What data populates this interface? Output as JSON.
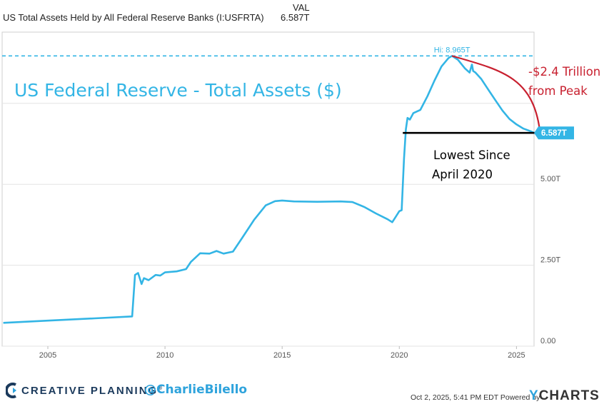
{
  "legend": {
    "series_label": "US Total Assets Held by All Federal Reserve Banks (I:USFRTA)",
    "value_header": "VAL",
    "value": "6.587T"
  },
  "colors": {
    "series": "#33b5e5",
    "annotation_red": "#c8202f",
    "text_dark": "#222222",
    "brand_navy": "#1b3a5c",
    "brand_blue": "#2ea3dc"
  },
  "chart_data": {
    "type": "line",
    "title": "US Federal Reserve - Total Assets ($)",
    "xlabel": "",
    "ylabel": "",
    "x_ticks": [
      "2005",
      "2010",
      "2015",
      "2020",
      "2025"
    ],
    "y_ticks": [
      "0.00",
      "2.50T",
      "5.00T"
    ],
    "x_range": [
      2003.05,
      2025.75
    ],
    "y_range": [
      0,
      9.7
    ],
    "y_unit": "trillion USD",
    "grid": "horizontal",
    "series": [
      {
        "name": "US Total Assets Held by All Federal Reserve Banks (I:USFRTA)",
        "x": [
          2003.1,
          2005.0,
          2007.0,
          2008.6,
          2008.72,
          2008.85,
          2009.0,
          2009.1,
          2009.3,
          2009.6,
          2009.8,
          2010.0,
          2010.5,
          2010.9,
          2011.1,
          2011.5,
          2011.9,
          2012.2,
          2012.5,
          2012.9,
          2013.3,
          2013.8,
          2014.3,
          2014.7,
          2015.0,
          2015.5,
          2016.5,
          2017.5,
          2018.0,
          2018.5,
          2019.0,
          2019.5,
          2019.7,
          2019.85,
          2020.0,
          2020.1,
          2020.2,
          2020.28,
          2020.35,
          2020.45,
          2020.6,
          2020.9,
          2021.2,
          2021.5,
          2021.8,
          2022.1,
          2022.25,
          2022.5,
          2022.8,
          2023.0,
          2023.1,
          2023.15,
          2023.25,
          2023.5,
          2023.8,
          2024.1,
          2024.4,
          2024.7,
          2025.0,
          2025.3,
          2025.6,
          2025.75
        ],
        "values": [
          0.72,
          0.79,
          0.86,
          0.92,
          2.2,
          2.26,
          1.92,
          2.1,
          2.04,
          2.2,
          2.18,
          2.28,
          2.31,
          2.38,
          2.6,
          2.87,
          2.86,
          2.94,
          2.86,
          2.92,
          3.35,
          3.9,
          4.35,
          4.48,
          4.5,
          4.47,
          4.46,
          4.47,
          4.45,
          4.3,
          4.1,
          3.92,
          3.83,
          4.0,
          4.17,
          4.2,
          5.8,
          6.7,
          7.05,
          7.0,
          7.2,
          7.3,
          7.72,
          8.2,
          8.64,
          8.9,
          8.965,
          8.85,
          8.58,
          8.45,
          8.7,
          8.5,
          8.45,
          8.25,
          7.92,
          7.6,
          7.28,
          7.02,
          6.85,
          6.72,
          6.64,
          6.587
        ]
      }
    ],
    "annotations": {
      "high_label": "Hi: 8.965T",
      "high_value": 8.965,
      "high_x": 2022.25,
      "current_value": 6.587,
      "current_tag": "6.587T",
      "decline_text_line1": "-$2.4 Trillion",
      "decline_text_line2": "from Peak",
      "lowest_text_line1": "Lowest Since",
      "lowest_text_line2": "April 2020",
      "lowest_line_start_x": 2020.15
    }
  },
  "footer": {
    "brand": "CREATIVE PLANNING",
    "brand_mark": "®",
    "handle": "@CharlieBilello",
    "timestamp": "Oct 2, 2025, 5:41 PM EDT Powered by",
    "ycharts_y": "Y",
    "ycharts_rest": "CHARTS"
  }
}
